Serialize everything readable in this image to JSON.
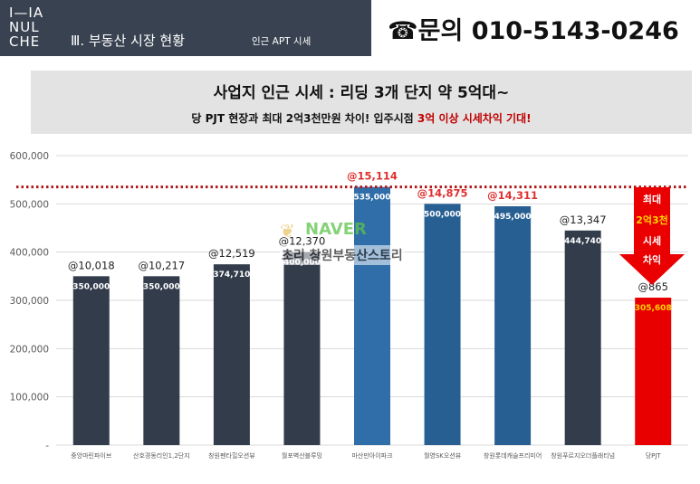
{
  "header": {
    "logo_lines": [
      "I—IA",
      "NUL",
      "CHE"
    ],
    "section_title": "Ⅲ. 부동산 시장 현황",
    "section_sub": "인근 APT 시세"
  },
  "contact": {
    "icon": "phone-icon",
    "text": "☎문의 010-5143-0246"
  },
  "banner": {
    "title": "사업지 인근 시세 : 리딩 3개 단지 약 5억대~",
    "sub_prefix": "당 PJT 현장과 최대 2억3천만원 차이! 입주시점 ",
    "sub_highlight": "3억 이상 시세차익 기대!"
  },
  "arrow": {
    "line1": "최대",
    "line2": "2억3천",
    "line3": "시세",
    "line4": "차익"
  },
  "watermark": {
    "brand": "NAVER",
    "text": "초리 창원부동산스토리"
  },
  "colors": {
    "navy": "#323c4b",
    "blue": "#2f6ea8",
    "blue_dark": "#285f93",
    "red": "#e80000",
    "red_label": "#e03030",
    "yellow": "#ffd200",
    "dotted_line": "#b01818"
  },
  "chart_data": {
    "type": "bar",
    "categories": [
      "중앙마린파이브",
      "산호경동리인1,2단지",
      "창원펜타힐오션뷰",
      "월포벽산블루밍",
      "마산만아이파크",
      "월영SK오션뷰",
      "창원롯데캐슬프리미어",
      "창원푸르지오더플래티넘",
      "당PJT"
    ],
    "values": [
      350000,
      350000,
      374710,
      400000,
      535000,
      500000,
      495000,
      444740,
      305608
    ],
    "value_labels": [
      "350,000",
      "350,000",
      "374,710",
      "400,000",
      "535,000",
      "500,000",
      "495,000",
      "444,740",
      "305,608"
    ],
    "top_labels": [
      "@10,018",
      "@10,217",
      "@12,519",
      "@12,370",
      "@15,114",
      "@14,875",
      "@14,311",
      "@13,347",
      "@865"
    ],
    "bar_colors": [
      "navy",
      "navy",
      "navy",
      "navy",
      "blue",
      "blue_dark",
      "blue_dark",
      "navy",
      "red"
    ],
    "top_label_colors": [
      "#222222",
      "#222222",
      "#222222",
      "#222222",
      "#e03030",
      "#e03030",
      "#e03030",
      "#222222",
      "#222222"
    ],
    "value_label_colors": [
      "#ffffff",
      "#ffffff",
      "#ffffff",
      "#ffffff",
      "#ffffff",
      "#ffffff",
      "#ffffff",
      "#ffffff",
      "#ffd200"
    ],
    "yticks": [
      "-",
      "100,000",
      "200,000",
      "300,000",
      "400,000",
      "500,000",
      "600,000"
    ],
    "ylim": [
      0,
      600000
    ],
    "reference_line": 535000,
    "grid": true
  }
}
